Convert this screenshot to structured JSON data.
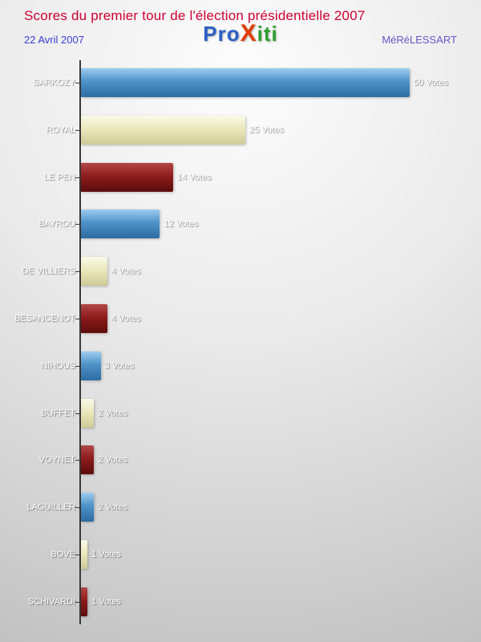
{
  "header": {
    "title": "Scores du premier tour de l'élection présidentielle 2007",
    "date": "22 Avril 2007",
    "brand": "MéRéLESSART",
    "title_color": "#cc0033",
    "date_color": "#3b3bd0",
    "brand_color": "#6a55c8",
    "logo_letters": [
      {
        "char": "P",
        "color": "#2b5fc3"
      },
      {
        "char": "r",
        "color": "#2b5fc3"
      },
      {
        "char": "o",
        "color": "#2b5fc3"
      },
      {
        "char": "X",
        "color": "#e03c00"
      },
      {
        "char": "i",
        "color": "#2f9e2f"
      },
      {
        "char": "t",
        "color": "#2f9e2f"
      },
      {
        "char": "i",
        "color": "#2f9e2f"
      }
    ]
  },
  "chart_data": {
    "type": "bar",
    "orientation": "horizontal",
    "title": "Scores du premier tour de l'élection présidentielle 2007",
    "xlabel": "",
    "ylabel": "",
    "xlim": [
      0,
      50
    ],
    "grid": false,
    "legend": false,
    "categories": [
      "SARKOZY",
      "ROYAL",
      "LE PEN",
      "BAYROU",
      "DE VILLIERS",
      "BESANCENOT",
      "NIHOUS",
      "BUFFET",
      "VOYNET",
      "LAGUILLER",
      "BOVE",
      "SCHIVARDI"
    ],
    "values": [
      50,
      25,
      14,
      12,
      4,
      4,
      3,
      2,
      2,
      2,
      1,
      1
    ],
    "value_labels": [
      "50 Votes",
      "25 Votes",
      "14 Votes",
      "12 Votes",
      "4 Votes",
      "4 Votes",
      "3 Votes",
      "2 Votes",
      "2 Votes",
      "2 Votes",
      "1 Votes",
      "1 Votes"
    ],
    "bar_color_cycle": [
      "#4e92c8",
      "#ebe8bd",
      "#8e1c1c"
    ],
    "axis_color": "#3a3a3a"
  }
}
